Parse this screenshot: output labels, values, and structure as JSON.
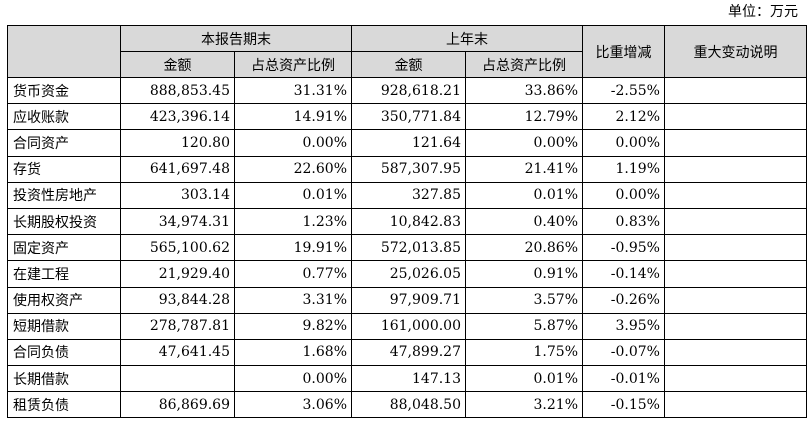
{
  "unit_label": "单位：万元",
  "headers": {
    "period_end": "本报告期末",
    "prior_year_end": "上年末",
    "amount": "金额",
    "ratio": "占总资产比例",
    "change": "比重增减",
    "explanation": "重大变动说明"
  },
  "rows": [
    {
      "item": "货币资金",
      "cur_amount": "888,853.45",
      "cur_ratio": "31.31%",
      "prev_amount": "928,618.21",
      "prev_ratio": "33.86%",
      "change": "-2.55%",
      "note": ""
    },
    {
      "item": "应收账款",
      "cur_amount": "423,396.14",
      "cur_ratio": "14.91%",
      "prev_amount": "350,771.84",
      "prev_ratio": "12.79%",
      "change": "2.12%",
      "note": ""
    },
    {
      "item": "合同资产",
      "cur_amount": "120.80",
      "cur_ratio": "0.00%",
      "prev_amount": "121.64",
      "prev_ratio": "0.00%",
      "change": "0.00%",
      "note": ""
    },
    {
      "item": "存货",
      "cur_amount": "641,697.48",
      "cur_ratio": "22.60%",
      "prev_amount": "587,307.95",
      "prev_ratio": "21.41%",
      "change": "1.19%",
      "note": ""
    },
    {
      "item": "投资性房地产",
      "cur_amount": "303.14",
      "cur_ratio": "0.01%",
      "prev_amount": "327.85",
      "prev_ratio": "0.01%",
      "change": "0.00%",
      "note": ""
    },
    {
      "item": "长期股权投资",
      "cur_amount": "34,974.31",
      "cur_ratio": "1.23%",
      "prev_amount": "10,842.83",
      "prev_ratio": "0.40%",
      "change": "0.83%",
      "note": ""
    },
    {
      "item": "固定资产",
      "cur_amount": "565,100.62",
      "cur_ratio": "19.91%",
      "prev_amount": "572,013.85",
      "prev_ratio": "20.86%",
      "change": "-0.95%",
      "note": ""
    },
    {
      "item": "在建工程",
      "cur_amount": "21,929.40",
      "cur_ratio": "0.77%",
      "prev_amount": "25,026.05",
      "prev_ratio": "0.91%",
      "change": "-0.14%",
      "note": ""
    },
    {
      "item": "使用权资产",
      "cur_amount": "93,844.28",
      "cur_ratio": "3.31%",
      "prev_amount": "97,909.71",
      "prev_ratio": "3.57%",
      "change": "-0.26%",
      "note": ""
    },
    {
      "item": "短期借款",
      "cur_amount": "278,787.81",
      "cur_ratio": "9.82%",
      "prev_amount": "161,000.00",
      "prev_ratio": "5.87%",
      "change": "3.95%",
      "note": ""
    },
    {
      "item": "合同负债",
      "cur_amount": "47,641.45",
      "cur_ratio": "1.68%",
      "prev_amount": "47,899.27",
      "prev_ratio": "1.75%",
      "change": "-0.07%",
      "note": ""
    },
    {
      "item": "长期借款",
      "cur_amount": "",
      "cur_ratio": "0.00%",
      "prev_amount": "147.13",
      "prev_ratio": "0.01%",
      "change": "-0.01%",
      "note": ""
    },
    {
      "item": "租赁负债",
      "cur_amount": "86,869.69",
      "cur_ratio": "3.06%",
      "prev_amount": "88,048.50",
      "prev_ratio": "3.21%",
      "change": "-0.15%",
      "note": ""
    }
  ]
}
